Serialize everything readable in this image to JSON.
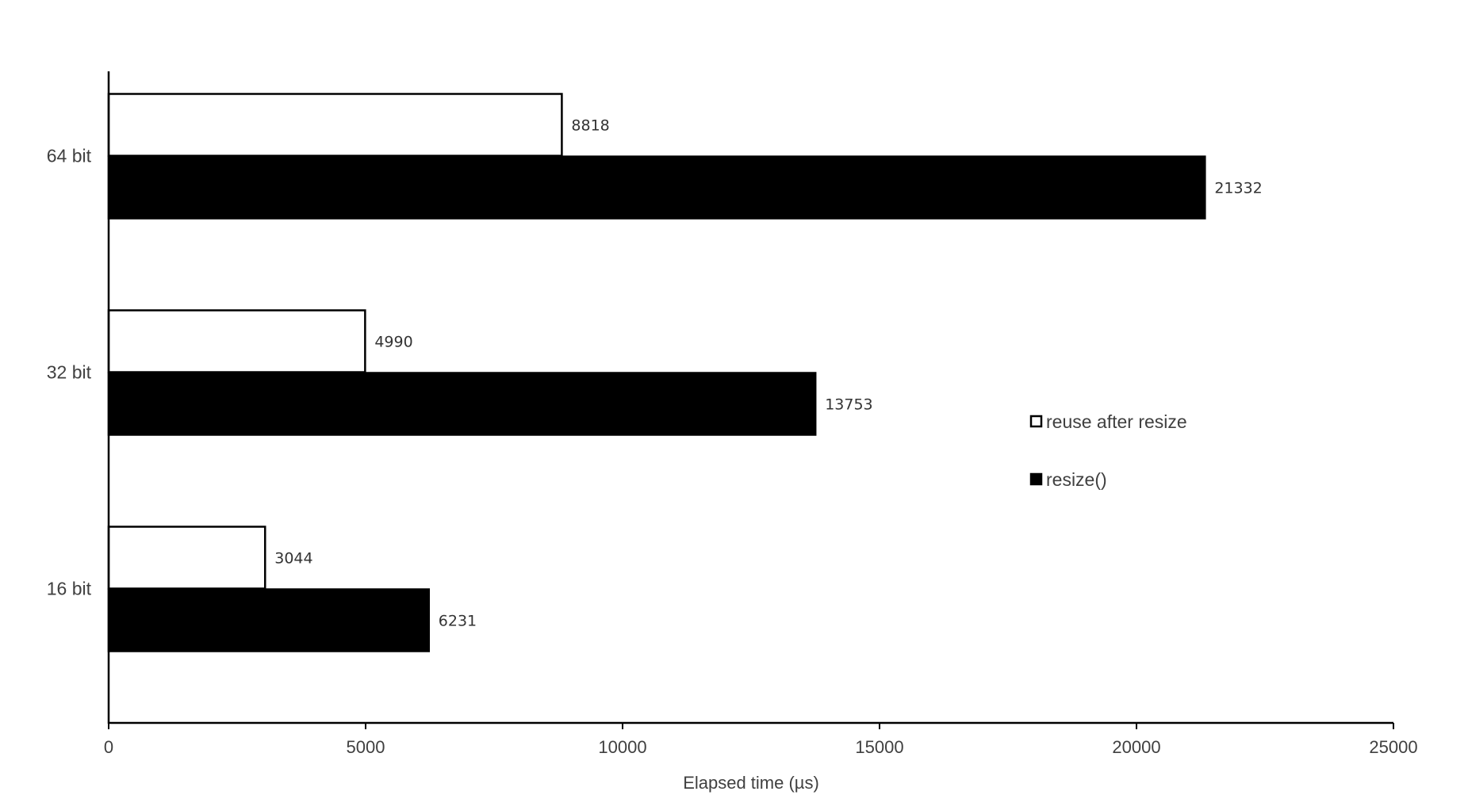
{
  "chart_data": {
    "type": "bar",
    "orientation": "horizontal",
    "title": "",
    "xlabel": "Elapsed time (µs)",
    "ylabel": "",
    "xlim": [
      0,
      25000
    ],
    "x_ticks": [
      "0",
      "5000",
      "10000",
      "15000",
      "20000",
      "25000"
    ],
    "categories": [
      "64 bit",
      "32 bit",
      "16 bit"
    ],
    "series": [
      {
        "name": "reuse after resize",
        "fill": "#ffffff",
        "stroke": "#000000",
        "values": [
          8818,
          4990,
          3044
        ],
        "labels": [
          "8818",
          "4990",
          "3044"
        ]
      },
      {
        "name": "resize()",
        "fill": "#000000",
        "stroke": "#000000",
        "values": [
          21332,
          13753,
          6231
        ],
        "labels": [
          "21332",
          "13753",
          "6231"
        ]
      }
    ],
    "grid": false,
    "legend_position": "right"
  }
}
